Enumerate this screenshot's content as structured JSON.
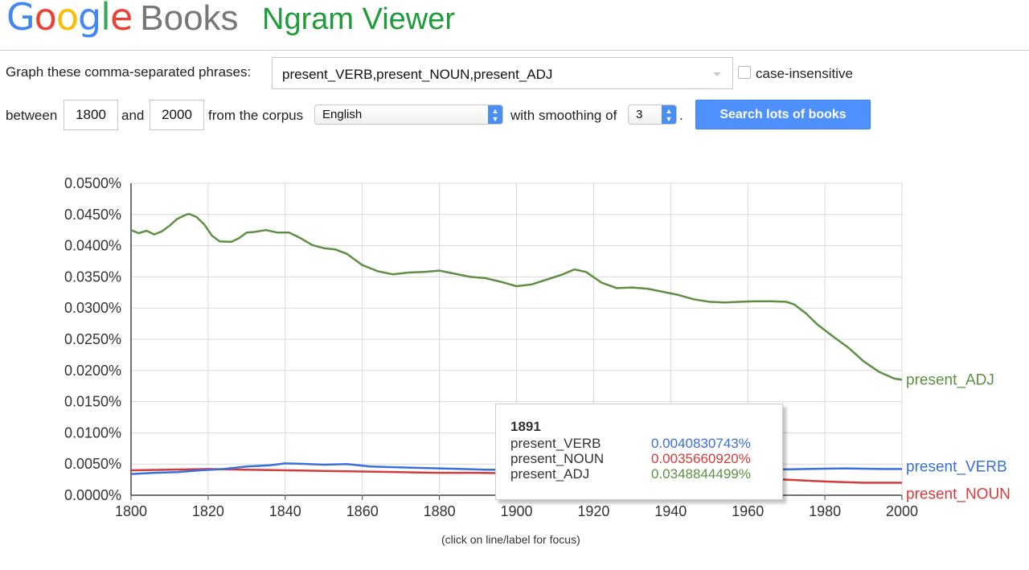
{
  "logo": {
    "letters": [
      "G",
      "o",
      "o",
      "g",
      "l",
      "e"
    ],
    "colors": [
      "#4285f4",
      "#ea4335",
      "#fbbc05",
      "#4285f4",
      "#34a853",
      "#ea4335"
    ],
    "books": "Books"
  },
  "title": "Ngram Viewer",
  "form": {
    "phrases_label": "Graph these comma-separated phrases:",
    "phrases_value": "present_VERB,present_NOUN,present_ADJ",
    "case_label": "case-insensitive",
    "between_label": "between",
    "start_year": "1800",
    "and_label": "and",
    "end_year": "2000",
    "corpus_label": "from the corpus",
    "corpus_value": "English",
    "smoothing_label": "with smoothing of",
    "smoothing_value": "3",
    "period": ".",
    "search_button": "Search lots of books"
  },
  "chart_data": {
    "type": "line",
    "xlim": [
      1800,
      2000
    ],
    "ylim": [
      0,
      0.05
    ],
    "y_ticks": [
      "0.0000%",
      "0.0050%",
      "0.0100%",
      "0.0150%",
      "0.0200%",
      "0.0250%",
      "0.0300%",
      "0.0350%",
      "0.0400%",
      "0.0450%",
      "0.0500%"
    ],
    "x_ticks": [
      "1800",
      "1820",
      "1840",
      "1860",
      "1880",
      "1900",
      "1920",
      "1940",
      "1960",
      "1980",
      "2000"
    ],
    "grid": true,
    "series": [
      {
        "name": "present_ADJ",
        "color": "#5f8f45",
        "x": [
          1800,
          1802,
          1804,
          1806,
          1808,
          1810,
          1812,
          1814,
          1815,
          1817,
          1819,
          1821,
          1823,
          1826,
          1828,
          1830,
          1832,
          1835,
          1838,
          1841,
          1844,
          1847,
          1850,
          1853,
          1856,
          1860,
          1864,
          1868,
          1872,
          1876,
          1880,
          1884,
          1888,
          1892,
          1896,
          1900,
          1904,
          1908,
          1912,
          1915,
          1918,
          1922,
          1926,
          1930,
          1934,
          1938,
          1942,
          1946,
          1950,
          1954,
          1958,
          1962,
          1966,
          1970,
          1972,
          1975,
          1978,
          1982,
          1986,
          1990,
          1994,
          1998,
          2000
        ],
        "values": [
          0.0425,
          0.042,
          0.0424,
          0.0418,
          0.0423,
          0.0432,
          0.0443,
          0.0449,
          0.0451,
          0.0446,
          0.0434,
          0.0416,
          0.0407,
          0.0406,
          0.0412,
          0.0421,
          0.0422,
          0.0425,
          0.0421,
          0.0421,
          0.0412,
          0.0401,
          0.0396,
          0.0394,
          0.0387,
          0.0369,
          0.0359,
          0.0354,
          0.0357,
          0.0358,
          0.036,
          0.0355,
          0.035,
          0.0348,
          0.0342,
          0.0335,
          0.0338,
          0.0346,
          0.0354,
          0.0362,
          0.0358,
          0.0341,
          0.0332,
          0.0333,
          0.0331,
          0.0326,
          0.0321,
          0.0314,
          0.031,
          0.0309,
          0.031,
          0.0311,
          0.0311,
          0.031,
          0.0306,
          0.0292,
          0.0274,
          0.0255,
          0.0237,
          0.0215,
          0.0198,
          0.0187,
          0.0185
        ]
      },
      {
        "name": "present_VERB",
        "color": "#3b6fdb",
        "x": [
          1800,
          1806,
          1812,
          1818,
          1824,
          1830,
          1836,
          1840,
          1846,
          1850,
          1856,
          1862,
          1868,
          1874,
          1880,
          1886,
          1892,
          1898,
          1905,
          1915,
          1925,
          1935,
          1945,
          1955,
          1965,
          1975,
          1985,
          1995,
          2000
        ],
        "values": [
          0.0034,
          0.0036,
          0.0037,
          0.004,
          0.0042,
          0.0046,
          0.0048,
          0.0051,
          0.005,
          0.0049,
          0.005,
          0.0046,
          0.0045,
          0.0044,
          0.0043,
          0.0042,
          0.0041,
          0.0041,
          0.0041,
          0.0041,
          0.0041,
          0.0041,
          0.0041,
          0.0041,
          0.0041,
          0.0042,
          0.0043,
          0.0042,
          0.0042
        ]
      },
      {
        "name": "present_NOUN",
        "color": "#d13c3c",
        "x": [
          1800,
          1810,
          1820,
          1830,
          1840,
          1850,
          1860,
          1870,
          1880,
          1890,
          1900,
          1910,
          1920,
          1930,
          1940,
          1950,
          1960,
          1970,
          1980,
          1990,
          2000
        ],
        "values": [
          0.004,
          0.0041,
          0.0042,
          0.0041,
          0.004,
          0.0039,
          0.0038,
          0.0037,
          0.0036,
          0.0036,
          0.0035,
          0.0035,
          0.0034,
          0.0033,
          0.0032,
          0.003,
          0.0028,
          0.0025,
          0.0022,
          0.002,
          0.002
        ]
      }
    ]
  },
  "tooltip": {
    "year": "1891",
    "rows": [
      {
        "name": "present_VERB",
        "value": "0.0040830743%",
        "color": "#3b6fdb"
      },
      {
        "name": "present_NOUN",
        "value": "0.0035660920%",
        "color": "#d13c3c"
      },
      {
        "name": "present_ADJ",
        "value": "0.0348844499%",
        "color": "#5f8f45"
      }
    ]
  },
  "footer_note": "(click on line/label for focus)"
}
